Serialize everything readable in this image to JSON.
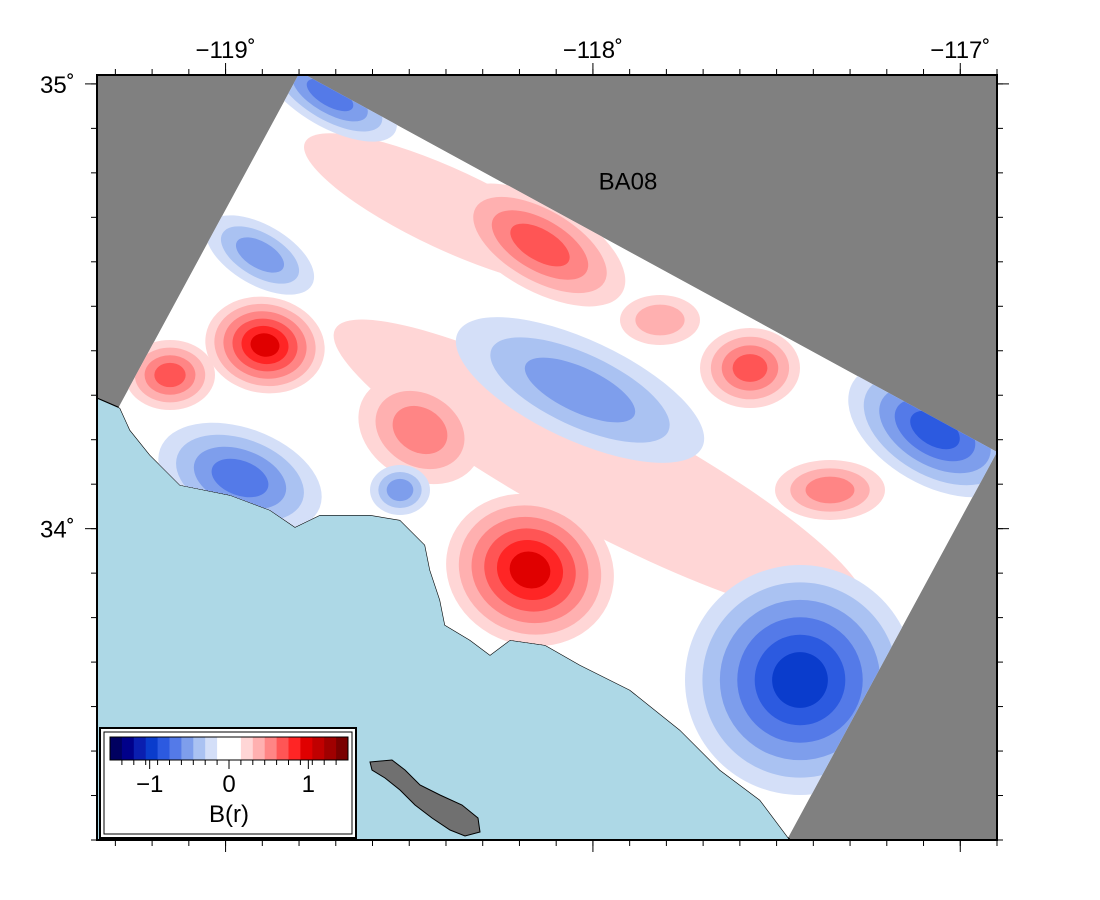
{
  "map": {
    "title": "BA08",
    "xlim": [
      -119.35,
      -116.9
    ],
    "ylim": [
      33.3,
      35.02
    ],
    "xticks": [
      {
        "value": -119,
        "label": "−119˚"
      },
      {
        "value": -118,
        "label": "−118˚"
      },
      {
        "value": -117,
        "label": "−117˚"
      }
    ],
    "yticks": [
      {
        "value": 35,
        "label": "35˚"
      },
      {
        "value": 34,
        "label": "34˚"
      }
    ],
    "minor_step": 0.1
  },
  "colorbar": {
    "label": "B(r)",
    "lim": [
      -1.5,
      1.5
    ],
    "ticks": [
      {
        "value": -1,
        "label": "−1"
      },
      {
        "value": 0,
        "label": "0"
      },
      {
        "value": 1,
        "label": "1"
      }
    ]
  }
}
